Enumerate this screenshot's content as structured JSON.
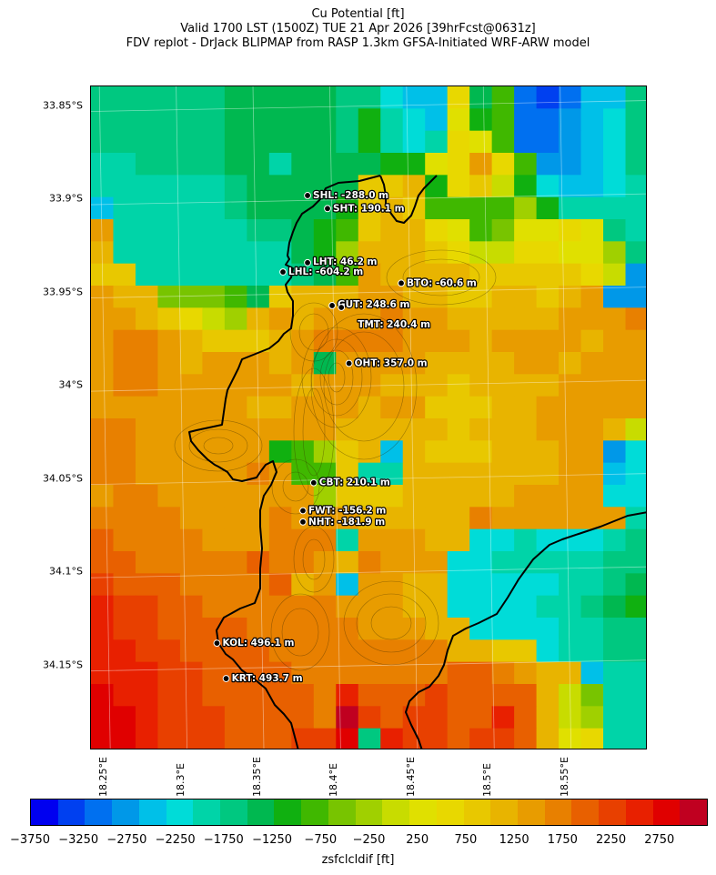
{
  "title": {
    "line1": "Cu Potential [ft]",
    "line2": "Valid 1700 LST (1500Z) TUE 21 Apr 2026 [39hrFcst@0631z]",
    "line3": "FDV replot - DrJack BLIPMAP from RASP 1.3km GFSA-Initiated WRF-ARW model"
  },
  "map": {
    "lat_ticks": [
      {
        "label": "33.85°S",
        "value": -33.85
      },
      {
        "label": "33.9°S",
        "value": -33.9
      },
      {
        "label": "33.95°S",
        "value": -33.95
      },
      {
        "label": "34°S",
        "value": -34.0
      },
      {
        "label": "34.05°S",
        "value": -34.05
      },
      {
        "label": "34.1°S",
        "value": -34.1
      },
      {
        "label": "34.15°S",
        "value": -34.15
      }
    ],
    "lon_ticks": [
      {
        "label": "18.25°E",
        "value": 18.25
      },
      {
        "label": "18.3°E",
        "value": 18.3
      },
      {
        "label": "18.35°E",
        "value": 18.35
      },
      {
        "label": "18.4°E",
        "value": 18.4
      },
      {
        "label": "18.45°E",
        "value": 18.45
      },
      {
        "label": "18.5°E",
        "value": 18.5
      },
      {
        "label": "18.55°E",
        "value": 18.55
      }
    ],
    "stations": [
      {
        "code": "SHL",
        "label": "SHL: -288.0 m",
        "lon": 18.382,
        "lat": -33.898
      },
      {
        "code": "SHT",
        "label": "SHT: 190.1 m",
        "lon": 18.395,
        "lat": -33.905
      },
      {
        "code": "LHT",
        "label": "LHT: 46.2 m",
        "lon": 18.382,
        "lat": -33.934
      },
      {
        "code": "LHL",
        "label": "LHL: -604.2 m",
        "lon": 18.366,
        "lat": -33.939
      },
      {
        "code": "BTO",
        "label": "BTO: -60.6 m",
        "lon": 18.443,
        "lat": -33.945
      },
      {
        "code": "GUT",
        "label": "GUT: 248.6 m",
        "lon": 18.398,
        "lat": -33.957
      },
      {
        "code": "TMT",
        "label": "TMT: 240.4 m",
        "lon": 18.404,
        "lat": -33.958
      },
      {
        "code": "OHT",
        "label": "OHT: 357.0 m",
        "lon": 18.409,
        "lat": -33.988
      },
      {
        "code": "CBT",
        "label": "CBT: 210.1 m",
        "lon": 18.386,
        "lat": -34.052
      },
      {
        "code": "FWT",
        "label": "FWT: -156.2 m",
        "lon": 18.379,
        "lat": -34.067
      },
      {
        "code": "NHT",
        "label": "NHT: -181.9 m",
        "lon": 18.379,
        "lat": -34.073
      },
      {
        "code": "KOL",
        "label": "KOL: 496.1 m",
        "lon": 18.323,
        "lat": -34.138
      },
      {
        "code": "KRT",
        "label": "KRT: 493.7 m",
        "lon": 18.329,
        "lat": -34.157
      }
    ]
  },
  "colorbar": {
    "colors": [
      "#0000f0",
      "#0040f0",
      "#0070f0",
      "#0098e8",
      "#00c0e8",
      "#00dcd8",
      "#00d4a8",
      "#00c880",
      "#00b850",
      "#10b010",
      "#40b800",
      "#78c400",
      "#a0d000",
      "#c8dc00",
      "#e0e000",
      "#e8d800",
      "#e8c800",
      "#e8b400",
      "#e89c00",
      "#e88000",
      "#e86000",
      "#e84000",
      "#e82000",
      "#e00000",
      "#c00020"
    ],
    "ticks": [
      {
        "label": "−3750",
        "value": -3750
      },
      {
        "label": "−3250",
        "value": -3250
      },
      {
        "label": "−2750",
        "value": -2750
      },
      {
        "label": "−2250",
        "value": -2250
      },
      {
        "label": "−1750",
        "value": -1750
      },
      {
        "label": "−1250",
        "value": -1250
      },
      {
        "label": "−750",
        "value": -750
      },
      {
        "label": "−250",
        "value": -250
      },
      {
        "label": "250",
        "value": 250
      },
      {
        "label": "750",
        "value": 750
      },
      {
        "label": "1250",
        "value": 1250
      },
      {
        "label": "1750",
        "value": 1750
      },
      {
        "label": "2250",
        "value": 2250
      },
      {
        "label": "2750",
        "value": 2750
      }
    ],
    "min": -3750,
    "max": 3250,
    "label": "zsfclcldif [ft]"
  },
  "grid_values": [
    [
      -2000,
      -2000,
      -2000,
      -2000,
      -2000,
      -2000,
      -1750,
      -1750,
      -1750,
      -1750,
      -1750,
      -2000,
      -2000,
      -2500,
      -2750,
      -2750,
      0,
      -1750,
      -1250,
      -3250,
      -3500,
      -3250,
      -2750,
      -2750,
      -2000
    ],
    [
      -2000,
      -2000,
      -2000,
      -2000,
      -2000,
      -2000,
      -1750,
      -1750,
      -1750,
      -1750,
      -1750,
      -2000,
      -1500,
      -2250,
      -2500,
      -2750,
      -250,
      -1500,
      -1250,
      -3250,
      -3250,
      -3000,
      -2750,
      -2500,
      -2000
    ],
    [
      -2000,
      -2000,
      -2000,
      -2000,
      -2000,
      -2000,
      -1750,
      -1750,
      -1750,
      -1750,
      -1750,
      -2000,
      -1500,
      -2250,
      -2500,
      -2250,
      0,
      -250,
      -1250,
      -3250,
      -3250,
      -3000,
      -2750,
      -2500,
      -2000
    ],
    [
      -2250,
      -2250,
      -2000,
      -2000,
      -2000,
      -2000,
      -1750,
      -1750,
      -2250,
      -1750,
      -1750,
      -1750,
      -1750,
      -1500,
      -1500,
      -250,
      0,
      750,
      0,
      -1250,
      -3000,
      -3000,
      -2750,
      -2500,
      -2000
    ],
    [
      -2250,
      -2250,
      -2250,
      -2250,
      -2250,
      -2250,
      -2000,
      -1750,
      -1750,
      -1750,
      -1750,
      -1750,
      250,
      250,
      500,
      -1500,
      0,
      250,
      -500,
      -1500,
      -2500,
      -2750,
      -2750,
      -2500,
      -2250
    ],
    [
      -2750,
      -2250,
      -2250,
      -2250,
      -2250,
      -2250,
      -2000,
      -1750,
      -1750,
      -1750,
      -1750,
      -1500,
      250,
      500,
      250,
      -1250,
      -1250,
      -1250,
      -1250,
      -750,
      -1500,
      -2250,
      -2250,
      -2250,
      -2250
    ],
    [
      750,
      -2250,
      -2250,
      -2250,
      -2250,
      -2250,
      -2250,
      -2000,
      -2000,
      -1750,
      -1500,
      -1250,
      250,
      500,
      500,
      0,
      -250,
      -1250,
      -1000,
      -250,
      -250,
      0,
      -250,
      -2000,
      -2250
    ],
    [
      500,
      -2250,
      -2250,
      -2250,
      -2250,
      -2250,
      -2250,
      -2250,
      -2250,
      -1750,
      -1500,
      -750,
      500,
      500,
      500,
      250,
      0,
      -500,
      -500,
      0,
      0,
      -250,
      -250,
      -750,
      -2000
    ],
    [
      250,
      250,
      -2250,
      -2250,
      -2250,
      -2250,
      -2250,
      -2250,
      -2250,
      -2000,
      -1750,
      -1250,
      750,
      500,
      500,
      500,
      500,
      250,
      250,
      250,
      250,
      250,
      0,
      -500,
      -3000
    ],
    [
      750,
      500,
      500,
      -1000,
      -1000,
      -1000,
      -1250,
      -1750,
      250,
      500,
      500,
      500,
      750,
      750,
      500,
      500,
      250,
      250,
      500,
      500,
      250,
      500,
      750,
      -3000,
      -3000
    ],
    [
      750,
      750,
      500,
      250,
      0,
      -500,
      -750,
      500,
      750,
      500,
      750,
      750,
      750,
      1000,
      750,
      750,
      500,
      500,
      500,
      500,
      500,
      750,
      750,
      750,
      1000
    ],
    [
      750,
      1000,
      1000,
      750,
      500,
      250,
      250,
      250,
      500,
      750,
      1000,
      1000,
      1000,
      1000,
      750,
      750,
      750,
      500,
      750,
      750,
      750,
      750,
      500,
      750,
      750
    ],
    [
      750,
      1000,
      1000,
      750,
      500,
      750,
      750,
      750,
      500,
      750,
      -1750,
      750,
      750,
      750,
      750,
      500,
      500,
      500,
      500,
      750,
      750,
      500,
      750,
      750,
      750
    ],
    [
      750,
      1000,
      1000,
      750,
      750,
      750,
      750,
      750,
      750,
      500,
      750,
      750,
      750,
      500,
      500,
      500,
      250,
      500,
      500,
      500,
      500,
      750,
      750,
      750,
      750
    ],
    [
      750,
      750,
      750,
      750,
      750,
      750,
      750,
      500,
      500,
      750,
      750,
      750,
      500,
      750,
      750,
      250,
      250,
      250,
      500,
      500,
      750,
      750,
      750,
      750,
      750
    ],
    [
      1000,
      1000,
      750,
      750,
      750,
      750,
      750,
      750,
      750,
      750,
      750,
      500,
      500,
      500,
      500,
      500,
      250,
      500,
      500,
      500,
      750,
      750,
      750,
      500,
      -500
    ],
    [
      1000,
      1000,
      750,
      750,
      750,
      750,
      750,
      750,
      -1500,
      -1250,
      -750,
      250,
      500,
      -2750,
      500,
      250,
      250,
      250,
      500,
      500,
      500,
      750,
      750,
      -3000,
      -2500
    ],
    [
      1000,
      1000,
      750,
      750,
      750,
      750,
      750,
      1000,
      750,
      -1250,
      -1250,
      250,
      -2250,
      -2250,
      500,
      500,
      500,
      500,
      500,
      500,
      500,
      750,
      750,
      -2750,
      -2500
    ],
    [
      750,
      1000,
      1000,
      750,
      750,
      750,
      750,
      750,
      750,
      750,
      -750,
      250,
      250,
      250,
      500,
      500,
      500,
      500,
      500,
      750,
      750,
      750,
      750,
      -2500,
      -2500
    ],
    [
      1000,
      1000,
      1000,
      1000,
      750,
      750,
      750,
      750,
      1000,
      750,
      750,
      750,
      500,
      500,
      500,
      500,
      500,
      1000,
      750,
      750,
      750,
      750,
      750,
      750,
      -2250
    ],
    [
      1250,
      1000,
      1000,
      1000,
      1000,
      750,
      750,
      750,
      1000,
      1000,
      1000,
      -2250,
      750,
      750,
      750,
      500,
      500,
      -2500,
      -2500,
      -2250,
      -2500,
      -2500,
      -2500,
      -2250,
      -2000
    ],
    [
      1250,
      1250,
      1000,
      1000,
      1000,
      1000,
      1000,
      1250,
      1000,
      1000,
      750,
      500,
      1000,
      750,
      750,
      750,
      -2500,
      -2500,
      -2250,
      -2250,
      -2250,
      -2250,
      -2250,
      -2000,
      -2000
    ],
    [
      1500,
      1250,
      1250,
      1250,
      1000,
      1000,
      1000,
      1000,
      1250,
      500,
      750,
      -2750,
      750,
      750,
      500,
      500,
      -2500,
      -2500,
      -2500,
      -2500,
      -2500,
      -2250,
      -2250,
      -2000,
      -1750
    ],
    [
      1750,
      1500,
      1500,
      1250,
      1250,
      1000,
      1000,
      1000,
      1000,
      1000,
      1000,
      750,
      750,
      750,
      500,
      500,
      -2500,
      -2500,
      -2500,
      -2500,
      -2250,
      -2250,
      -2000,
      -1750,
      -1500
    ],
    [
      1750,
      1500,
      1500,
      1250,
      1250,
      1250,
      1250,
      1000,
      1000,
      1000,
      1000,
      1000,
      750,
      750,
      750,
      500,
      500,
      -2500,
      -2500,
      -2500,
      -2500,
      -2250,
      -2250,
      -2000,
      -2000
    ],
    [
      1750,
      1750,
      1500,
      1500,
      1250,
      1250,
      1250,
      1250,
      1000,
      1000,
      1000,
      1000,
      1000,
      1000,
      1000,
      1000,
      500,
      500,
      250,
      250,
      -2500,
      -2250,
      -2250,
      -2000,
      -2000
    ],
    [
      1750,
      1750,
      1750,
      1500,
      1500,
      1250,
      1250,
      1250,
      1250,
      1000,
      1000,
      1000,
      1000,
      1000,
      1000,
      1000,
      1250,
      1250,
      1000,
      750,
      500,
      500,
      -2750,
      -2250,
      -2250
    ],
    [
      2000,
      1750,
      1750,
      1500,
      1500,
      1250,
      1250,
      1250,
      1250,
      1250,
      1000,
      1750,
      1250,
      1250,
      1250,
      1500,
      1250,
      1250,
      1250,
      1250,
      500,
      -500,
      -1000,
      -2250,
      -2250
    ],
    [
      2000,
      2000,
      1750,
      1500,
      1500,
      1500,
      1250,
      1250,
      1250,
      1250,
      1000,
      2250,
      1500,
      1250,
      1500,
      1500,
      1250,
      1250,
      1750,
      1250,
      500,
      -500,
      -750,
      -2250,
      -2250
    ],
    [
      2000,
      2000,
      1750,
      1500,
      1500,
      1500,
      1250,
      1250,
      1250,
      1500,
      1500,
      2000,
      -2000,
      1750,
      1500,
      1500,
      1250,
      1500,
      1500,
      1250,
      500,
      -250,
      0,
      -2250,
      -2250
    ]
  ]
}
